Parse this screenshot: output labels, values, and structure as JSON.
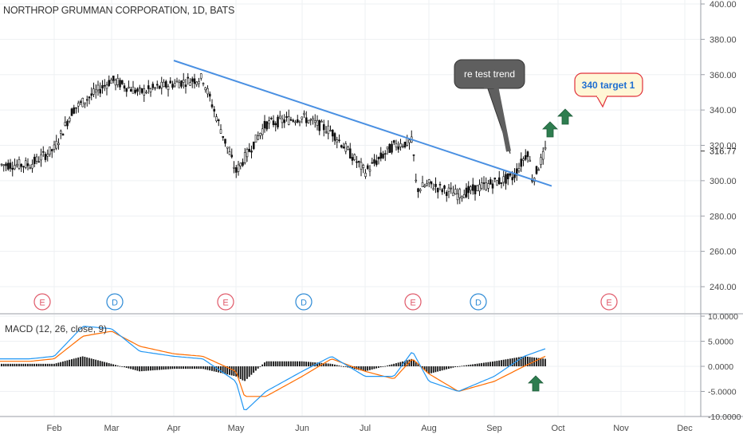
{
  "header": {
    "title": "NORTHROP GRUMMAN CORPORATION, 1D, BATS"
  },
  "macd": {
    "label": "MACD (12, 26, close, 9)"
  },
  "price_axis": {
    "ticks": [
      "400.00",
      "380.00",
      "360.00",
      "340.00",
      "320.00",
      "300.00",
      "280.00",
      "260.00",
      "240.00"
    ],
    "last_price": "316.77"
  },
  "macd_axis": {
    "ticks": [
      "10.0000",
      "5.0000",
      "0.0000",
      "-5.0000",
      "-10.0000"
    ]
  },
  "time_axis": {
    "months": [
      "Feb",
      "Mar",
      "Apr",
      "May",
      "Jun",
      "Jul",
      "Aug",
      "Sep",
      "Oct",
      "Nov",
      "Dec"
    ]
  },
  "events": [
    "E",
    "D",
    "E",
    "D",
    "E",
    "D",
    "E"
  ],
  "annotations": {
    "callout_retest": "re test trend",
    "callout_target": "340 target 1"
  },
  "colors": {
    "trendline": "#4a90e2",
    "macd_line": "#2196f3",
    "signal_line": "#ff6d00",
    "earnings": "#e05a6a",
    "dividend": "#2e8bd6",
    "arrow": "#2e7d4f",
    "callout_dark": "#5f5f5f",
    "callout_target_border": "#e0303a",
    "callout_target_text": "#1f6fd1"
  },
  "chart_data": {
    "type": "line",
    "title": "NORTHROP GRUMMAN CORPORATION, 1D, BATS",
    "x": [
      "Jan 20",
      "Feb 1",
      "Feb 10",
      "Mar 1",
      "Mar 15",
      "Apr 1",
      "Apr 15",
      "May 1",
      "May 15",
      "Jun 1",
      "Jun 15",
      "Jul 1",
      "Jul 15",
      "Jul 24",
      "Jul 26",
      "Aug 1",
      "Aug 15",
      "Sep 1",
      "Sep 10",
      "Sep 17",
      "Sep 19",
      "Sep 25"
    ],
    "series": [
      {
        "values": [
          309,
          318,
          340,
          357,
          350,
          355,
          358,
          305,
          332,
          336,
          328,
          305,
          320,
          322,
          295,
          298,
          292,
          299,
          302,
          317,
          300,
          316.77
        ]
      }
    ],
    "last_value": 316.77,
    "ylim": [
      230,
      400
    ],
    "trendline": {
      "x": [
        "Apr 1",
        "Sep 28"
      ],
      "y": [
        368,
        297
      ]
    },
    "macd": {
      "label": "MACD (12, 26, close, 9)",
      "ylim": [
        -10,
        10
      ],
      "x": [
        "Jan 20",
        "Feb 1",
        "Feb 15",
        "Mar 1",
        "Mar 15",
        "Apr 1",
        "Apr 15",
        "May 1",
        "May 5",
        "May 15",
        "Jun 1",
        "Jun 15",
        "Jul 1",
        "Jul 15",
        "Jul 24",
        "Aug 1",
        "Aug 15",
        "Sep 1",
        "Sep 15",
        "Sep 25"
      ],
      "macd": [
        1.5,
        2,
        8,
        7.5,
        3,
        2,
        1.5,
        -3,
        -9,
        -5,
        -1,
        2,
        -2,
        -2,
        3,
        -3,
        -5,
        -2,
        2,
        3.5
      ],
      "signal": [
        1,
        1.5,
        6,
        7,
        4,
        2.5,
        2,
        -1,
        -6,
        -6,
        -2,
        1.5,
        -1,
        -2.5,
        1.5,
        -1.5,
        -5,
        -3,
        0,
        2
      ],
      "histogram": [
        0.5,
        0.5,
        2,
        0.5,
        -1,
        -0.5,
        -0.5,
        -2,
        -3,
        1,
        1,
        0.5,
        -1,
        0.5,
        1.5,
        -1.5,
        0,
        1,
        2,
        1.5
      ]
    },
    "grid": true,
    "legend": "none"
  }
}
